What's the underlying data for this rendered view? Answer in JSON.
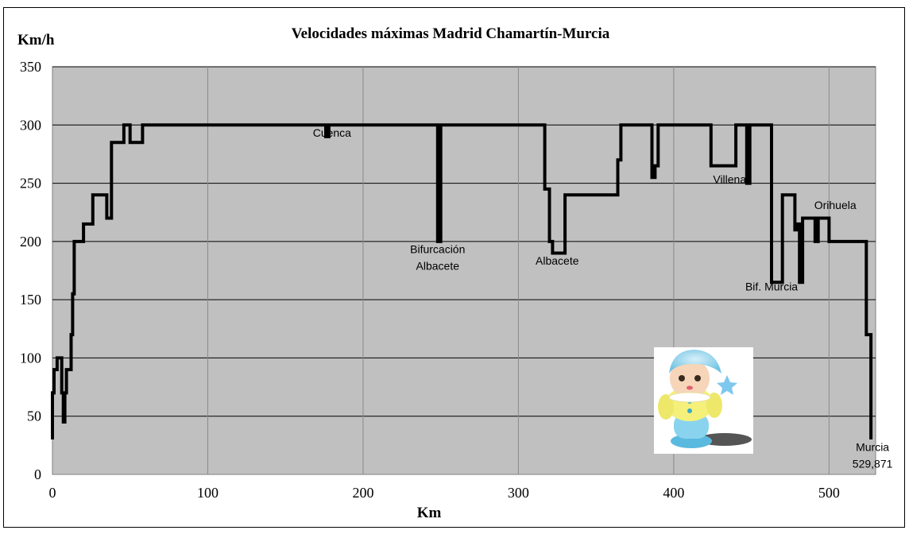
{
  "chart_data": {
    "type": "line",
    "title": "Velocidades máximas Madrid Chamartín-Murcia",
    "xlabel": "Km",
    "ylabel": "Km/h",
    "xlim": [
      0,
      530
    ],
    "ylim": [
      0,
      350
    ],
    "x_ticks": [
      "0",
      "100",
      "200",
      "300",
      "400",
      "500"
    ],
    "y_ticks": [
      "0",
      "50",
      "100",
      "150",
      "200",
      "250",
      "300",
      "350"
    ],
    "grid": true,
    "legend": "none",
    "plot_background": "#c0c0c0",
    "line_color": "#000000",
    "series": [
      {
        "x": [
          0,
          0,
          1,
          1,
          3,
          3,
          6,
          6,
          7,
          7,
          8,
          8,
          9,
          9,
          12,
          12,
          13,
          13,
          14,
          14,
          20,
          20,
          26,
          26,
          35,
          35,
          38,
          38,
          46,
          46,
          50,
          50,
          58,
          58,
          64,
          64,
          176,
          176,
          178,
          178,
          248,
          248,
          250,
          250,
          317,
          317,
          320,
          320,
          322,
          322,
          330,
          330,
          364,
          364,
          366,
          366,
          386,
          386,
          388,
          388,
          390,
          390,
          424,
          424,
          440,
          440,
          447,
          447,
          449,
          449,
          451,
          451,
          463,
          463,
          470,
          470,
          478,
          478,
          480,
          480,
          481,
          481,
          483,
          483,
          485,
          485,
          491,
          491,
          493,
          493,
          500,
          500,
          522,
          522,
          524,
          524,
          527,
          527
        ],
        "y": [
          30,
          70,
          70,
          90,
          90,
          100,
          100,
          70,
          70,
          45,
          45,
          70,
          70,
          90,
          90,
          120,
          120,
          155,
          155,
          200,
          200,
          215,
          215,
          240,
          240,
          220,
          220,
          285,
          285,
          300,
          300,
          285,
          285,
          300,
          300,
          300,
          300,
          290,
          290,
          300,
          300,
          200,
          200,
          300,
          300,
          245,
          245,
          200,
          200,
          190,
          190,
          240,
          240,
          270,
          270,
          300,
          300,
          255,
          255,
          265,
          265,
          300,
          300,
          265,
          265,
          300,
          300,
          250,
          250,
          300,
          300,
          300,
          300,
          165,
          165,
          240,
          240,
          210,
          210,
          215,
          215,
          165,
          165,
          220,
          220,
          220,
          220,
          200,
          200,
          220,
          220,
          200,
          200,
          200,
          200,
          120,
          120,
          30
        ]
      }
    ],
    "annotations": [
      {
        "x": 180,
        "y": 290,
        "lines": [
          "Cuenca"
        ]
      },
      {
        "x": 248,
        "y": 190,
        "lines": [
          "Bifurcación",
          "Albacete"
        ]
      },
      {
        "x": 325,
        "y": 180,
        "lines": [
          "Albacete"
        ]
      },
      {
        "x": 436,
        "y": 250,
        "lines": [
          "Villena"
        ]
      },
      {
        "x": 463,
        "y": 158,
        "lines": [
          "Bif. Murcia"
        ]
      },
      {
        "x": 504,
        "y": 228,
        "lines": [
          "Orihuela"
        ]
      },
      {
        "x": 528,
        "y": 20,
        "lines": [
          "Murcia",
          "529,871"
        ]
      }
    ]
  },
  "decor": {
    "doll_image": "toy-doll-icon"
  }
}
